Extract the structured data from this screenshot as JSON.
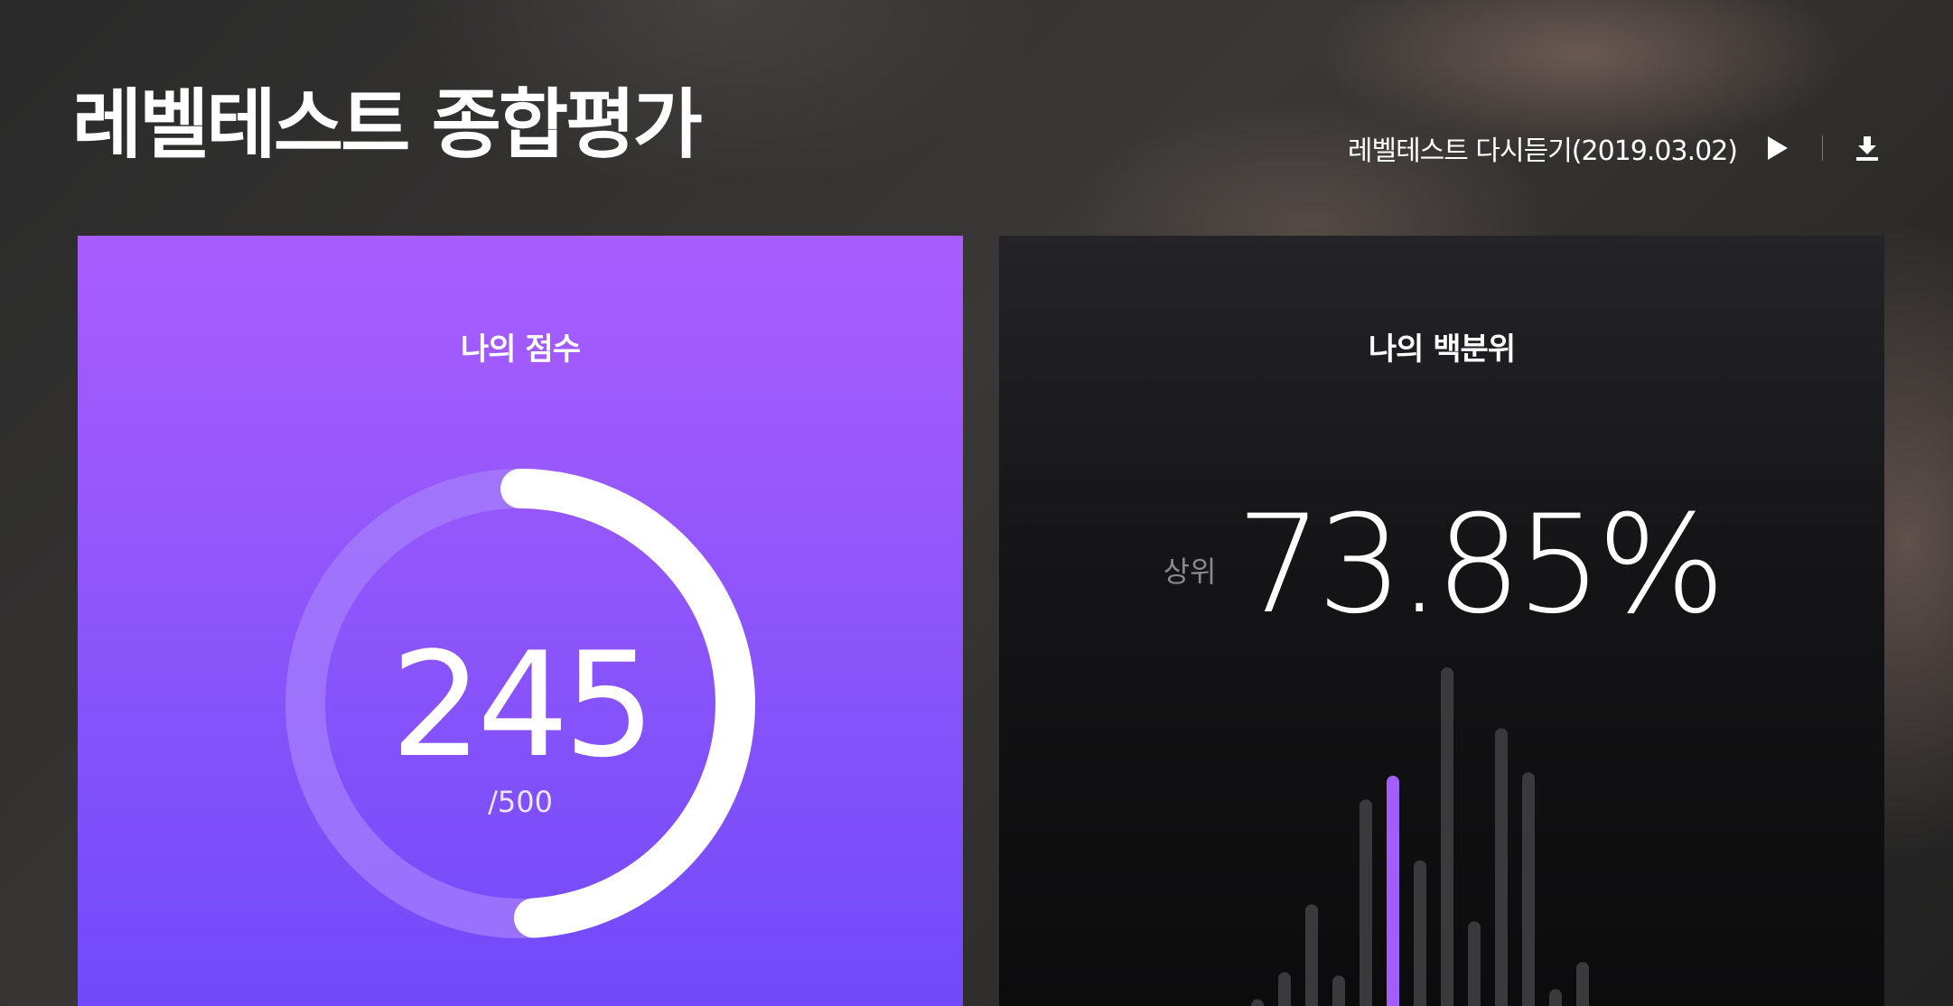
{
  "header": {
    "title": "레벨테스트 종합평가",
    "relisten_label": "레벨테스트 다시듣기(2019.03.02)"
  },
  "score_card": {
    "title": "나의 점수",
    "score": "245",
    "total": "/500",
    "progress_fraction": 0.49,
    "colors": {
      "track": "#a67dfc",
      "arc": "#ffffff"
    }
  },
  "percentile_card": {
    "title": "나의 백분위",
    "rank_prefix": "상위",
    "rank_value": "73.85%",
    "histogram": {
      "bars": [
        0.02,
        0.1,
        0.3,
        0.09,
        0.61,
        0.68,
        0.43,
        1.0,
        0.25,
        0.82,
        0.69,
        0.05,
        0.13
      ],
      "highlight_index": 5,
      "colors": {
        "bar": "#3a3a3c",
        "highlight": "#a35dfd"
      }
    }
  },
  "icons": {
    "play": "play-icon",
    "download": "download-icon"
  }
}
